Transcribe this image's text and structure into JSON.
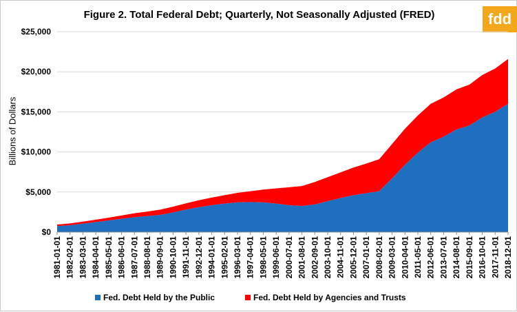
{
  "title": "Figure 2. Total Federal Debt; Quarterly, Not Seasonally Adjusted (FRED)",
  "logo": "fdd",
  "colors": {
    "public": "#1f6fc0",
    "agencies": "#ff0000",
    "logo_bg": "#f3a71b"
  },
  "chart_data": {
    "type": "area",
    "stacked": true,
    "ylabel": "Billions of Dollars",
    "xlabel": "",
    "ylim": [
      0,
      25000
    ],
    "yticks": [
      "$0",
      "$5,000",
      "$10,000",
      "$15,000",
      "$20,000",
      "$25,000"
    ],
    "ytick_values": [
      0,
      5000,
      10000,
      15000,
      20000,
      25000
    ],
    "grid": true,
    "legend_position": "bottom",
    "x": [
      "1981-01-01",
      "1982-02-01",
      "1983-03-01",
      "1984-04-01",
      "1985-05-01",
      "1986-06-01",
      "1987-07-01",
      "1988-08-01",
      "1989-09-01",
      "1990-10-01",
      "1991-11-01",
      "1992-12-01",
      "1994-01-01",
      "1995-02-01",
      "1996-03-01",
      "1997-04-01",
      "1998-05-01",
      "1999-06-01",
      "2000-07-01",
      "2001-08-01",
      "2002-09-01",
      "2003-10-01",
      "2004-11-01",
      "2005-12-01",
      "2007-01-01",
      "2008-02-01",
      "2009-03-01",
      "2010-04-01",
      "2011-05-01",
      "2012-06-01",
      "2013-07-01",
      "2014-08-01",
      "2015-09-01",
      "2016-10-01",
      "2017-11-01",
      "2018-12-01"
    ],
    "series": [
      {
        "name": "Fed. Debt Held by the Public",
        "values": [
          750,
          850,
          1050,
          1250,
          1450,
          1650,
          1850,
          2000,
          2150,
          2450,
          2800,
          3100,
          3350,
          3550,
          3700,
          3750,
          3700,
          3550,
          3350,
          3250,
          3450,
          3850,
          4250,
          4600,
          4850,
          5100,
          6700,
          8400,
          9900,
          11200,
          11900,
          12800,
          13300,
          14300,
          15000,
          16000
        ]
      },
      {
        "name": "Fed. Debt Held by Agencies and Trusts",
        "values": [
          200,
          230,
          260,
          300,
          350,
          420,
          500,
          570,
          650,
          720,
          790,
          870,
          960,
          1060,
          1200,
          1350,
          1600,
          1900,
          2250,
          2500,
          2800,
          3000,
          3200,
          3450,
          3700,
          4000,
          4300,
          4500,
          4650,
          4800,
          4900,
          5000,
          5100,
          5300,
          5400,
          5600
        ]
      }
    ]
  }
}
